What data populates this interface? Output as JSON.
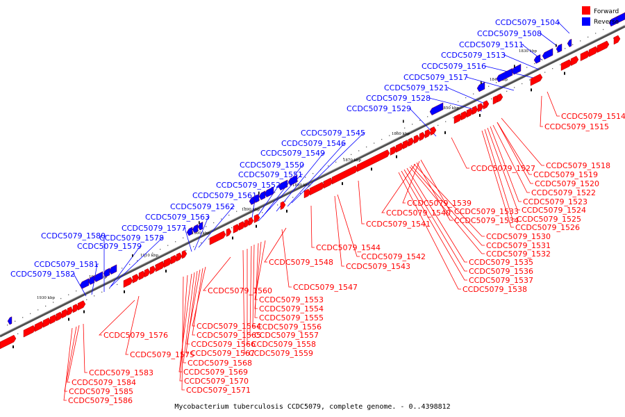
{
  "caption": "Mycobacterium tuberculosis CCDC5079, complete genome. - 0..4398812",
  "legend": {
    "forward_label": "Forward",
    "reverse_label": "Reverse",
    "forward_color": "#ff0000",
    "reverse_color": "#0000ff"
  },
  "colors": {
    "backbone": "#808080",
    "forward": "#ff0000",
    "reverse": "#0000ff",
    "marker": "#000000"
  },
  "ticks": [
    "1830 kbp",
    "1840 kbp",
    "1850 kbp",
    "1860 kbp",
    "1870 kbp",
    "1880 kbp",
    "1890 kbp",
    "1900 kbp",
    "1910 kbp",
    "1920 kbp",
    "1930 kbp"
  ],
  "reverse_genes": [
    "CCDC5079_1504",
    "CCDC5079_1508",
    "CCDC5079_1511",
    "CCDC5079_1513",
    "CCDC5079_1516",
    "CCDC5079_1517",
    "CCDC5079_1521",
    "CCDC5079_1528",
    "CCDC5079_1529",
    "CCDC5079_1545",
    "CCDC5079_1546",
    "CCDC5079_1549",
    "CCDC5079_1550",
    "CCDC5079_1551",
    "CCDC5079_1552",
    "CCDC5079_1561",
    "CCDC5079_1562",
    "CCDC5079_1563",
    "CCDC5079_1577",
    "CCDC5079_1578",
    "CCDC5079_1579",
    "CCDC5079_1580",
    "CCDC5079_1581",
    "CCDC5079_1582"
  ],
  "forward_genes": [
    "CCDC5079_1514",
    "CCDC5079_1515",
    "CCDC5079_1518",
    "CCDC5079_1527",
    "CCDC5079_1519",
    "CCDC5079_1520",
    "CCDC5079_1522",
    "CCDC5079_1523",
    "CCDC5079_1524",
    "CCDC5079_1525",
    "CCDC5079_1526",
    "CCDC5079_1539",
    "CCDC5079_1533",
    "CCDC5079_1540",
    "CCDC5079_1534",
    "CCDC5079_1541",
    "CCDC5079_1530",
    "CCDC5079_1531",
    "CCDC5079_1532",
    "CCDC5079_1544",
    "CCDC5079_1542",
    "CCDC5079_1535",
    "CCDC5079_1548",
    "CCDC5079_1543",
    "CCDC5079_1536",
    "CCDC5079_1537",
    "CCDC5079_1538",
    "CCDC5079_1547",
    "CCDC5079_1560",
    "CCDC5079_1553",
    "CCDC5079_1554",
    "CCDC5079_1555",
    "CCDC5079_1556",
    "CCDC5079_1564",
    "CCDC5079_1557",
    "CCDC5079_1565",
    "CCDC5079_1558",
    "CCDC5079_1576",
    "CCDC5079_1566",
    "CCDC5079_1559",
    "CCDC5079_1567",
    "CCDC5079_1575",
    "CCDC5079_1568",
    "CCDC5079_1569",
    "CCDC5079_1583",
    "CCDC5079_1570",
    "CCDC5079_1584",
    "CCDC5079_1571",
    "CCDC5079_1585",
    "CCDC5079_1586"
  ]
}
